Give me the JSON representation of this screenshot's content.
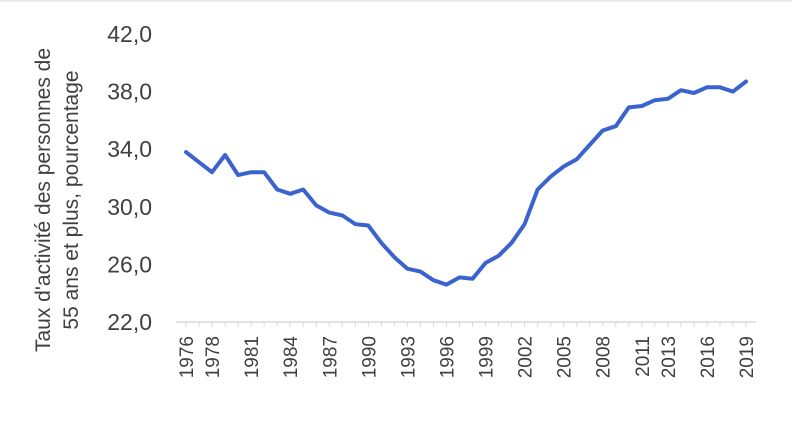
{
  "chart_data": {
    "type": "line",
    "ylabel_lines": [
      "Taux d'activité des personnes de",
      "55 ans et plus, pourcentage"
    ],
    "xlabel": "",
    "ylim": [
      22,
      42
    ],
    "yticks": [
      "22,0",
      "26,0",
      "30,0",
      "34,0",
      "38,0",
      "42,0"
    ],
    "ytick_values": [
      22,
      26,
      30,
      34,
      38,
      42
    ],
    "xticks": [
      "1976",
      "1978",
      "1981",
      "1984",
      "1987",
      "1990",
      "1993",
      "1996",
      "1999",
      "2002",
      "2005",
      "2008",
      "2011",
      "2013",
      "2016",
      "2019"
    ],
    "x": [
      1976,
      1977,
      1978,
      1979,
      1980,
      1981,
      1982,
      1983,
      1984,
      1985,
      1986,
      1987,
      1988,
      1989,
      1990,
      1991,
      1992,
      1993,
      1994,
      1995,
      1996,
      1997,
      1998,
      1999,
      2000,
      2001,
      2002,
      2003,
      2004,
      2005,
      2006,
      2007,
      2008,
      2009,
      2010,
      2011,
      2012,
      2013,
      2014,
      2015,
      2016,
      2017,
      2018,
      2019
    ],
    "series": [
      {
        "color": "#3a63cf",
        "values": [
          33.8,
          33.1,
          32.4,
          33.6,
          32.2,
          32.4,
          32.4,
          31.2,
          30.9,
          31.2,
          30.1,
          29.6,
          29.4,
          28.8,
          28.7,
          27.5,
          26.5,
          25.7,
          25.5,
          24.9,
          24.6,
          25.1,
          25.0,
          26.1,
          26.6,
          27.5,
          28.8,
          31.2,
          32.1,
          32.8,
          33.3,
          34.3,
          35.3,
          35.6,
          36.9,
          37.0,
          37.4,
          37.5,
          38.1,
          37.9,
          38.3,
          38.3,
          38.0,
          38.7
        ]
      }
    ]
  }
}
